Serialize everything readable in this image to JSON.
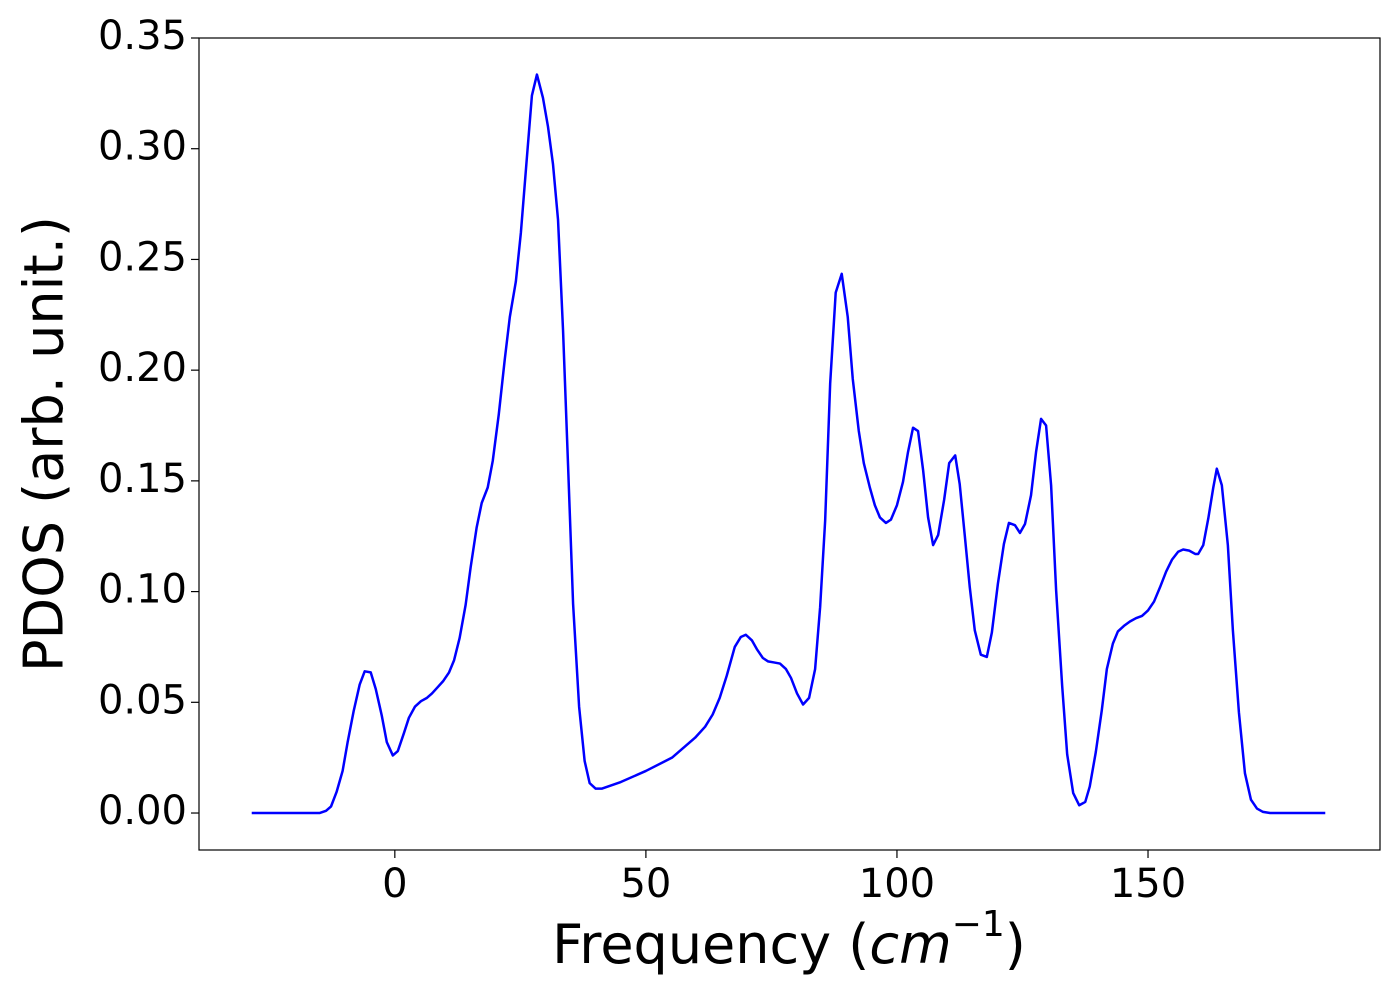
{
  "chart_data": {
    "type": "line",
    "xlabel": [
      "Frequency (",
      "cm",
      "−1",
      ")"
    ],
    "ylabel": "PDOS (arb. unit.)",
    "xlim": [
      -39,
      196.2
    ],
    "ylim": [
      -0.0167,
      0.35
    ],
    "xticks": [
      0,
      50,
      100,
      150
    ],
    "yticks": [
      {
        "value": 0,
        "label": "0.00"
      },
      {
        "value": 0.05,
        "label": "0.05"
      },
      {
        "value": 0.1,
        "label": "0.10"
      },
      {
        "value": 0.15,
        "label": "0.15"
      },
      {
        "value": 0.2,
        "label": "0.20"
      },
      {
        "value": 0.25,
        "label": "0.25"
      },
      {
        "value": 0.3,
        "label": "0.30"
      },
      {
        "value": 0.35,
        "label": "0.35"
      }
    ],
    "x": [
      -28.5,
      -15,
      -13.7,
      -12.7,
      -11.6,
      -10.4,
      -9.4,
      -8.2,
      -7.0,
      -6.0,
      -4.8,
      -3.8,
      -2.6,
      -1.6,
      -0.4,
      0.6,
      1.8,
      2.8,
      4.0,
      5.2,
      6.4,
      7.4,
      8.6,
      9.6,
      10.8,
      11.8,
      12.9,
      14.1,
      15.1,
      16.3,
      17.3,
      18.5,
      19.5,
      20.7,
      21.9,
      22.9,
      24.1,
      25.1,
      26.3,
      27.3,
      28.3,
      29.5,
      30.5,
      31.5,
      32.5,
      33.5,
      34.5,
      35.5,
      36.7,
      37.8,
      38.8,
      40.0,
      41.2,
      45,
      50,
      55.2,
      59.8,
      61.8,
      63.3,
      64.7,
      66.1,
      67.7,
      68.9,
      69.9,
      71.1,
      72.1,
      73.3,
      74.3,
      75.5,
      76.7,
      77.9,
      78.9,
      80.1,
      81.3,
      82.5,
      83.7,
      84.7,
      85.7,
      86.7,
      87.8,
      89.0,
      90.2,
      91.2,
      92.4,
      93.4,
      94.6,
      95.6,
      96.6,
      97.8,
      98.8,
      100.0,
      101.2,
      102.2,
      103.2,
      104.2,
      105.2,
      106.2,
      107.2,
      108.2,
      109.4,
      110.4,
      111.6,
      112.5,
      113.5,
      114.5,
      115.5,
      116.7,
      117.9,
      118.9,
      120.1,
      121.3,
      122.3,
      123.5,
      124.5,
      125.5,
      126.7,
      127.7,
      128.7,
      129.7,
      130.7,
      131.7,
      132.9,
      133.9,
      135.1,
      136.3,
      137.5,
      138.4,
      139.6,
      140.8,
      141.8,
      143.0,
      144.0,
      145.2,
      146.4,
      147.6,
      148.8,
      150.0,
      151.2,
      152.4,
      153.6,
      154.8,
      156.0,
      157.0,
      158.2,
      159.4,
      160.0,
      161.0,
      162.0,
      163.0,
      163.7,
      164.7,
      165.9,
      166.9,
      168.1,
      169.3,
      170.5,
      171.7,
      172.9,
      174.3,
      185.3
    ],
    "series": [
      {
        "color": "#0000ff",
        "values": [
          0,
          0,
          0.001,
          0.003,
          0.0095,
          0.019,
          0.032,
          0.046,
          0.058,
          0.064,
          0.0635,
          0.056,
          0.044,
          0.032,
          0.026,
          0.028,
          0.036,
          0.043,
          0.048,
          0.0505,
          0.052,
          0.054,
          0.057,
          0.0595,
          0.0635,
          0.069,
          0.079,
          0.094,
          0.111,
          0.129,
          0.14,
          0.147,
          0.159,
          0.18,
          0.205,
          0.224,
          0.24,
          0.262,
          0.296,
          0.324,
          0.3335,
          0.323,
          0.31,
          0.293,
          0.268,
          0.218,
          0.157,
          0.0945,
          0.048,
          0.0235,
          0.0135,
          0.011,
          0.011,
          0.014,
          0.019,
          0.025,
          0.034,
          0.039,
          0.0445,
          0.052,
          0.062,
          0.075,
          0.0795,
          0.0805,
          0.078,
          0.074,
          0.07,
          0.0685,
          0.068,
          0.0675,
          0.065,
          0.061,
          0.054,
          0.049,
          0.052,
          0.065,
          0.093,
          0.132,
          0.194,
          0.235,
          0.2435,
          0.224,
          0.196,
          0.1725,
          0.158,
          0.147,
          0.139,
          0.1335,
          0.131,
          0.1325,
          0.139,
          0.1495,
          0.163,
          0.174,
          0.1725,
          0.155,
          0.1335,
          0.121,
          0.1255,
          0.1415,
          0.158,
          0.1615,
          0.1485,
          0.1255,
          0.102,
          0.0825,
          0.0715,
          0.0705,
          0.0815,
          0.1035,
          0.1215,
          0.131,
          0.13,
          0.1265,
          0.1305,
          0.1435,
          0.163,
          0.178,
          0.175,
          0.148,
          0.1005,
          0.0575,
          0.0265,
          0.009,
          0.0035,
          0.005,
          0.012,
          0.0275,
          0.0465,
          0.065,
          0.0765,
          0.082,
          0.0845,
          0.0865,
          0.088,
          0.089,
          0.0915,
          0.0955,
          0.102,
          0.109,
          0.1145,
          0.118,
          0.119,
          0.1185,
          0.117,
          0.117,
          0.121,
          0.133,
          0.147,
          0.1555,
          0.148,
          0.121,
          0.0825,
          0.0455,
          0.018,
          0.006,
          0.002,
          0.0005,
          0,
          0
        ]
      }
    ]
  }
}
